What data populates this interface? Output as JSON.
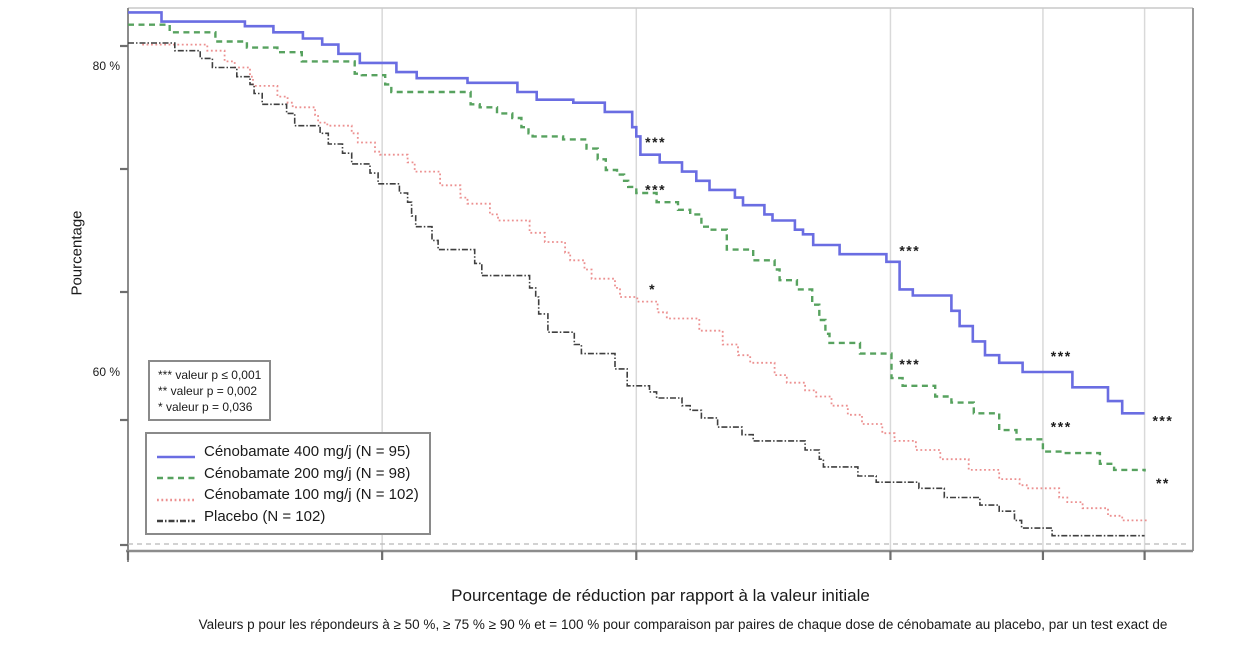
{
  "figure": {
    "y_axis_title": "Pourcentage",
    "x_axis_title": "Pourcentage de réduction par rapport à la valeur initiale",
    "caption": "Valeurs p pour les répondeurs à ≥ 50 %, ≥ 75 % ≥ 90 % et = 100 % pour comparaison par paires de chaque dose de cénobamate au placebo, par un test exact de"
  },
  "pvalue_box": {
    "lines": [
      "*** valeur p ≤ 0,001",
      "** valeur p = 0,002",
      "* valeur p = 0,036"
    ]
  },
  "legend": {
    "items": [
      {
        "label": "Cénobamate 400 mg/j (N = 95)",
        "color": "#6a6de2",
        "style": "solid"
      },
      {
        "label": "Cénobamate 200 mg/j (N = 98)",
        "color": "#57a25f",
        "style": "dashed"
      },
      {
        "label": "Cénobamate 100 mg/j (N = 102)",
        "color": "#ec9090",
        "style": "dotted"
      },
      {
        "label": "Placebo (N = 102)",
        "color": "#3f3f3f",
        "style": "dashdot"
      }
    ]
  },
  "chart_data": {
    "type": "line",
    "subtype": "step-responder-curves",
    "title": "",
    "xlabel": "Pourcentage de réduction par rapport à la valeur initiale",
    "ylabel": "Pourcentage",
    "xlim": [
      0,
      104.7
    ],
    "ylim": [
      48.3,
      83.8
    ],
    "grid": "vertical-only",
    "x_gridlines": [
      25,
      50,
      75,
      90,
      100
    ],
    "y_axis_labels": [
      {
        "value": 80,
        "label": "80 %"
      },
      {
        "value": 60,
        "label": "60 %"
      }
    ],
    "legend_position": "lower-left-inside",
    "series": [
      {
        "name": "Cénobamate 400 mg/j (N = 95)",
        "color": "#6a6de2",
        "style": "solid",
        "width": 2.6,
        "points": [
          [
            0,
            83.5
          ],
          [
            3.3,
            82.9
          ],
          [
            11.5,
            82.6
          ],
          [
            14.3,
            82.2
          ],
          [
            17.2,
            81.8
          ],
          [
            19.1,
            81.4
          ],
          [
            20.7,
            80.8
          ],
          [
            22.8,
            80.2
          ],
          [
            26.4,
            79.6
          ],
          [
            28.4,
            79.2
          ],
          [
            33.4,
            78.9
          ],
          [
            38.3,
            78.3
          ],
          [
            40.2,
            77.8
          ],
          [
            43.8,
            77.6
          ],
          [
            46.9,
            77.0
          ],
          [
            49.6,
            76.0
          ],
          [
            50.0,
            75.4
          ],
          [
            50.4,
            74.2
          ],
          [
            52.3,
            73.7
          ],
          [
            54.5,
            73.1
          ],
          [
            55.9,
            72.5
          ],
          [
            57.2,
            71.9
          ],
          [
            59.7,
            71.4
          ],
          [
            60.5,
            70.9
          ],
          [
            62.6,
            70.3
          ],
          [
            63.4,
            69.9
          ],
          [
            65.6,
            69.3
          ],
          [
            66.4,
            69.0
          ],
          [
            67.4,
            68.3
          ],
          [
            70.0,
            67.7
          ],
          [
            74.6,
            67.2
          ],
          [
            75.9,
            65.4
          ],
          [
            77.2,
            65.0
          ],
          [
            81.0,
            64.0
          ],
          [
            81.8,
            63.0
          ],
          [
            83.1,
            62.0
          ],
          [
            84.3,
            61.1
          ],
          [
            85.7,
            60.6
          ],
          [
            88.0,
            60.0
          ],
          [
            92.9,
            59.0
          ],
          [
            96.4,
            58.1
          ],
          [
            97.8,
            57.3
          ],
          [
            100.0,
            57.3
          ]
        ]
      },
      {
        "name": "Cénobamate 200 mg/j (N = 98)",
        "color": "#57a25f",
        "style": "dashed",
        "width": 2.4,
        "points": [
          [
            0,
            82.7
          ],
          [
            4.1,
            82.2
          ],
          [
            8.6,
            81.6
          ],
          [
            11.7,
            81.2
          ],
          [
            14.7,
            80.9
          ],
          [
            17.1,
            80.3
          ],
          [
            22.3,
            79.5
          ],
          [
            23.0,
            79.4
          ],
          [
            25.3,
            78.8
          ],
          [
            25.9,
            78.3
          ],
          [
            33.7,
            77.5
          ],
          [
            34.6,
            77.3
          ],
          [
            36.3,
            76.9
          ],
          [
            37.8,
            76.6
          ],
          [
            38.7,
            76.0
          ],
          [
            39.4,
            75.6
          ],
          [
            39.8,
            75.4
          ],
          [
            42.8,
            75.2
          ],
          [
            45.1,
            74.6
          ],
          [
            46.2,
            73.9
          ],
          [
            47.0,
            73.2
          ],
          [
            48.1,
            72.9
          ],
          [
            48.8,
            72.5
          ],
          [
            49.2,
            72.1
          ],
          [
            50.0,
            71.7
          ],
          [
            52.0,
            71.1
          ],
          [
            54.1,
            70.6
          ],
          [
            55.3,
            70.3
          ],
          [
            56.4,
            69.5
          ],
          [
            57.2,
            69.3
          ],
          [
            58.9,
            68.0
          ],
          [
            61.5,
            67.3
          ],
          [
            63.6,
            66.7
          ],
          [
            64.1,
            66.0
          ],
          [
            65.8,
            65.4
          ],
          [
            67.3,
            64.4
          ],
          [
            68.0,
            63.4
          ],
          [
            68.6,
            62.5
          ],
          [
            69.0,
            61.9
          ],
          [
            72.0,
            61.2
          ],
          [
            75.1,
            59.6
          ],
          [
            76.2,
            59.1
          ],
          [
            79.4,
            58.4
          ],
          [
            81.0,
            58.0
          ],
          [
            83.2,
            57.3
          ],
          [
            85.7,
            56.2
          ],
          [
            87.4,
            55.6
          ],
          [
            90.0,
            54.8
          ],
          [
            91.9,
            54.7
          ],
          [
            95.6,
            54.0
          ],
          [
            97.0,
            53.6
          ],
          [
            100.0,
            53.5
          ]
        ]
      },
      {
        "name": "Cénobamate 100 mg/j (N = 102)",
        "color": "#ec9090",
        "style": "dotted",
        "width": 1.8,
        "points": [
          [
            1.4,
            81.4
          ],
          [
            7.8,
            81.0
          ],
          [
            9.5,
            80.3
          ],
          [
            10.5,
            79.9
          ],
          [
            12.0,
            79.3
          ],
          [
            12.3,
            78.7
          ],
          [
            14.7,
            78.0
          ],
          [
            15.7,
            77.6
          ],
          [
            16.2,
            77.3
          ],
          [
            18.4,
            76.8
          ],
          [
            18.7,
            76.3
          ],
          [
            19.6,
            76.1
          ],
          [
            22.0,
            75.6
          ],
          [
            22.6,
            75.0
          ],
          [
            24.3,
            74.4
          ],
          [
            24.8,
            74.2
          ],
          [
            27.5,
            73.7
          ],
          [
            28.2,
            73.1
          ],
          [
            30.7,
            72.2
          ],
          [
            32.7,
            71.4
          ],
          [
            33.4,
            71.0
          ],
          [
            35.6,
            70.3
          ],
          [
            36.4,
            69.9
          ],
          [
            39.5,
            69.1
          ],
          [
            41.0,
            68.5
          ],
          [
            43.0,
            67.8
          ],
          [
            43.5,
            67.3
          ],
          [
            44.9,
            66.7
          ],
          [
            45.6,
            66.1
          ],
          [
            47.9,
            65.5
          ],
          [
            48.4,
            64.9
          ],
          [
            50.1,
            64.6
          ],
          [
            52.1,
            63.9
          ],
          [
            53.0,
            63.5
          ],
          [
            56.2,
            62.7
          ],
          [
            58.5,
            61.8
          ],
          [
            60.0,
            61.1
          ],
          [
            61.2,
            60.6
          ],
          [
            63.6,
            59.8
          ],
          [
            64.8,
            59.3
          ],
          [
            66.6,
            58.8
          ],
          [
            67.7,
            58.4
          ],
          [
            69.2,
            57.8
          ],
          [
            70.8,
            57.2
          ],
          [
            72.2,
            56.6
          ],
          [
            74.2,
            56.0
          ],
          [
            75.4,
            55.5
          ],
          [
            77.5,
            54.9
          ],
          [
            79.9,
            54.3
          ],
          [
            82.7,
            53.6
          ],
          [
            85.7,
            53.0
          ],
          [
            87.7,
            52.6
          ],
          [
            88.4,
            52.4
          ],
          [
            91.6,
            51.8
          ],
          [
            92.4,
            51.5
          ],
          [
            93.9,
            51.1
          ],
          [
            96.4,
            50.6
          ],
          [
            97.8,
            50.3
          ],
          [
            100.4,
            50.3
          ]
        ]
      },
      {
        "name": "Placebo (N = 102)",
        "color": "#3f3f3f",
        "style": "dashdot",
        "width": 1.6,
        "points": [
          [
            0,
            81.5
          ],
          [
            4.6,
            81.0
          ],
          [
            7.1,
            80.5
          ],
          [
            8.3,
            79.9
          ],
          [
            10.7,
            79.3
          ],
          [
            12.0,
            78.8
          ],
          [
            12.4,
            78.2
          ],
          [
            13.2,
            77.5
          ],
          [
            15.6,
            76.9
          ],
          [
            16.4,
            76.1
          ],
          [
            18.9,
            75.6
          ],
          [
            19.7,
            74.9
          ],
          [
            21.1,
            74.3
          ],
          [
            22.0,
            73.6
          ],
          [
            23.8,
            73.0
          ],
          [
            24.6,
            72.3
          ],
          [
            26.7,
            71.7
          ],
          [
            27.5,
            71.1
          ],
          [
            27.9,
            70.2
          ],
          [
            28.3,
            69.5
          ],
          [
            29.9,
            68.6
          ],
          [
            30.5,
            68.0
          ],
          [
            34.1,
            67.1
          ],
          [
            34.8,
            66.3
          ],
          [
            39.5,
            65.5
          ],
          [
            40.1,
            64.9
          ],
          [
            40.4,
            63.8
          ],
          [
            41.3,
            62.6
          ],
          [
            43.9,
            61.8
          ],
          [
            44.6,
            61.2
          ],
          [
            47.9,
            60.2
          ],
          [
            49.1,
            59.1
          ],
          [
            51.3,
            58.7
          ],
          [
            52.0,
            58.3
          ],
          [
            54.5,
            57.8
          ],
          [
            55.3,
            57.5
          ],
          [
            56.4,
            57.0
          ],
          [
            58.0,
            56.4
          ],
          [
            60.4,
            55.9
          ],
          [
            61.5,
            55.5
          ],
          [
            66.6,
            54.9
          ],
          [
            68.0,
            54.3
          ],
          [
            68.4,
            53.8
          ],
          [
            71.8,
            53.2
          ],
          [
            73.6,
            52.8
          ],
          [
            77.8,
            52.4
          ],
          [
            80.3,
            51.8
          ],
          [
            83.8,
            51.3
          ],
          [
            85.7,
            50.9
          ],
          [
            87.2,
            50.3
          ],
          [
            87.9,
            49.8
          ],
          [
            90.9,
            49.3
          ],
          [
            100.0,
            49.3
          ]
        ]
      }
    ],
    "annotations": [
      {
        "text": "***",
        "x": 51.9,
        "y": 75.0
      },
      {
        "text": "***",
        "x": 51.9,
        "y": 71.9
      },
      {
        "text": "*",
        "x": 51.6,
        "y": 65.4
      },
      {
        "text": "***",
        "x": 76.9,
        "y": 67.9
      },
      {
        "text": "***",
        "x": 76.9,
        "y": 60.5
      },
      {
        "text": "***",
        "x": 91.8,
        "y": 61.0
      },
      {
        "text": "***",
        "x": 91.8,
        "y": 56.4
      },
      {
        "text": "***",
        "x": 101.8,
        "y": 56.8
      },
      {
        "text": "**",
        "x": 101.8,
        "y": 52.7
      }
    ]
  }
}
